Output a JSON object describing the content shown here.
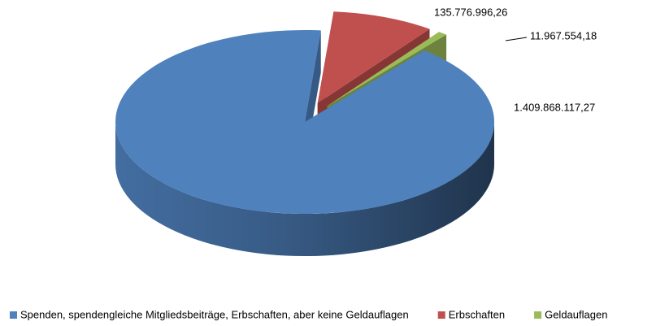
{
  "chart_data": {
    "type": "pie",
    "categories": [
      "Spenden, spendengleiche Mitgliedsbeiträge, Erbschaften, aber keine Geldauflagen",
      "Erbschaften",
      "Geldauflagen"
    ],
    "values": [
      1409868117.27,
      135776996.26,
      11967554.18
    ],
    "value_labels": [
      "1.409.868.117,27",
      "135.776.996,26",
      "11.967.554,18"
    ],
    "colors": [
      "#4f81bd",
      "#c0504d",
      "#9bbb59"
    ],
    "legend": "bottom"
  }
}
